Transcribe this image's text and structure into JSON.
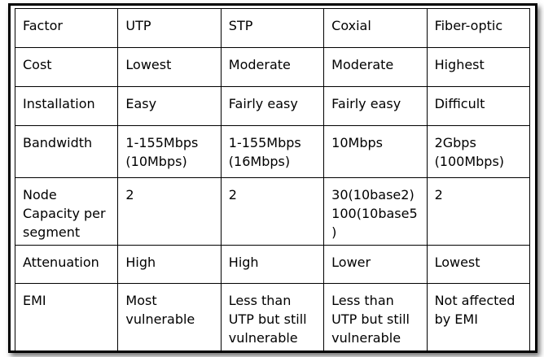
{
  "table": {
    "rows": [
      [
        "Factor",
        "UTP",
        "STP",
        "Coxial",
        "Fiber-optic"
      ],
      [
        "Cost",
        "Lowest",
        "Moderate",
        "Moderate",
        "Highest"
      ],
      [
        "Installation",
        "Easy",
        "Fairly easy",
        "Fairly easy",
        "Difficult"
      ],
      [
        "Bandwidth",
        "1-155Mbps (10Mbps)",
        "1-155Mbps (16Mbps)",
        "10Mbps",
        "2Gbps (100Mbps)"
      ],
      [
        "Node Capacity per segment",
        "2",
        "2",
        "30(10base2) 100(10base5)",
        "2"
      ],
      [
        "Attenuation",
        "High",
        "High",
        "Lower",
        "Lowest"
      ],
      [
        "EMI",
        "Most vulnerable",
        "Less than UTP but still vulnerable",
        "Less than UTP but still vulnerable",
        "Not affected by EMI"
      ]
    ]
  }
}
